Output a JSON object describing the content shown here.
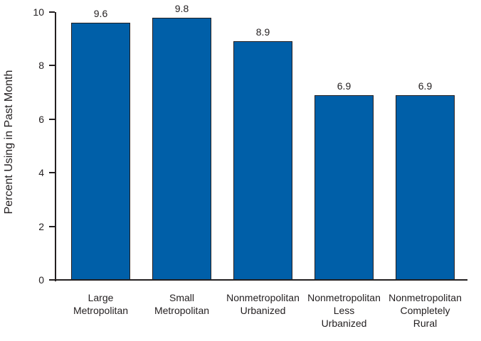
{
  "chart_data": {
    "type": "bar",
    "title": "",
    "xlabel": "",
    "ylabel": "Percent Using in Past Month",
    "categories": [
      "Large\nMetropolitan",
      "Small\nMetropolitan",
      "Nonmetropolitan\nUrbanized",
      "Nonmetropolitan\nLess\nUrbanized",
      "Nonmetropolitan\nCompletely\nRural"
    ],
    "values": [
      9.6,
      9.8,
      8.9,
      6.9,
      6.9
    ],
    "value_labels": [
      "9.6",
      "9.8",
      "8.9",
      "6.9",
      "6.9"
    ],
    "ylim": [
      0,
      10
    ],
    "yticks": [
      0,
      2,
      4,
      6,
      8,
      10
    ],
    "ytick_labels": [
      "0",
      "2",
      "4",
      "6",
      "8",
      "10"
    ],
    "grid": false,
    "legend_position": "none",
    "colors": {
      "bar_fill": "#005FA8",
      "bar_border": "#231F20",
      "axis": "#231F20",
      "text": "#231F20",
      "background": "#FFFFFF"
    }
  }
}
